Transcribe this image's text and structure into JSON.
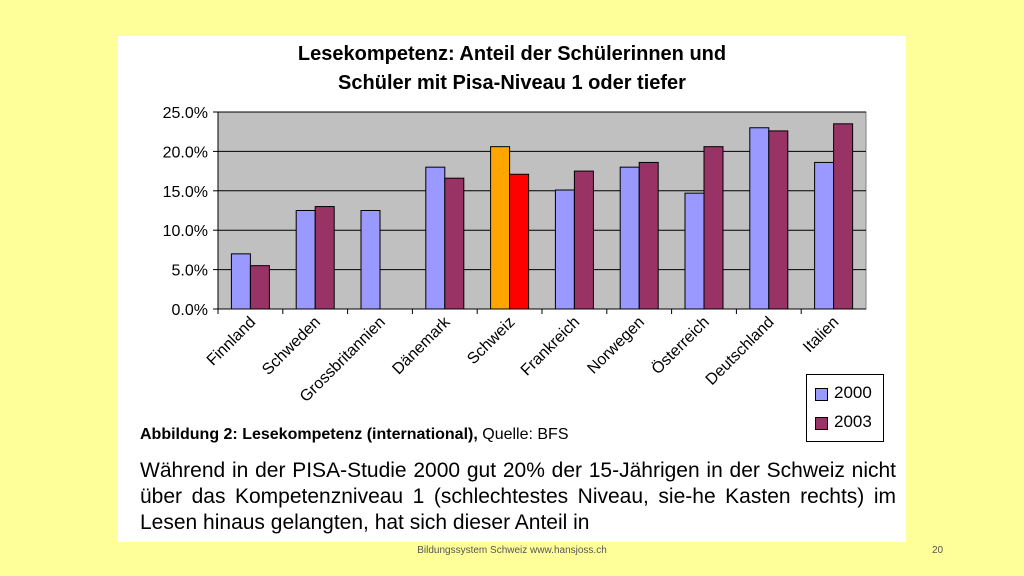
{
  "slide": {
    "title_line1": "Lesekompetenz: Anteil der Schülerinnen und",
    "title_line2": "Schüler mit Pisa-Niveau 1 oder tiefer",
    "caption_bold": "Abbildung 2: Lesekompetenz (international),",
    "caption_rest": " Quelle: BFS",
    "body_text": "Während in der PISA-Studie 2000 gut 20% der 15-Jährigen in der Schweiz nicht über das Kompetenzniveau 1 (schlechtestes Niveau, sie-he Kasten rechts) im Lesen hinaus gelangten, hat sich dieser Anteil in",
    "footer": "Bildungssystem Schweiz  www.hansjoss.ch",
    "page_number": "20"
  },
  "chart_data": {
    "type": "bar",
    "categories": [
      "Finnland",
      "Schweden",
      "Grossbritannien",
      "Dänemark",
      "Schweiz",
      "Frankreich",
      "Norwegen",
      "Österreich",
      "Deutschland",
      "Italien"
    ],
    "series": [
      {
        "name": "2000",
        "values": [
          7.0,
          12.5,
          12.5,
          18.0,
          20.6,
          15.1,
          18.0,
          14.7,
          23.0,
          18.6
        ],
        "color": "#9999ff"
      },
      {
        "name": "2003",
        "values": [
          5.5,
          13.0,
          null,
          16.6,
          17.1,
          17.5,
          18.6,
          20.6,
          22.6,
          23.5
        ],
        "color": "#993366"
      }
    ],
    "highlight": {
      "category": "Schweiz",
      "colors": [
        "#ffa500",
        "#ff0000"
      ]
    },
    "yticks": [
      "0.0%",
      "5.0%",
      "10.0%",
      "15.0%",
      "20.0%",
      "25.0%"
    ],
    "ylim": [
      0,
      25
    ],
    "plot_background": "#c0c0c0",
    "grid": true,
    "legend_position": "bottom-right"
  }
}
